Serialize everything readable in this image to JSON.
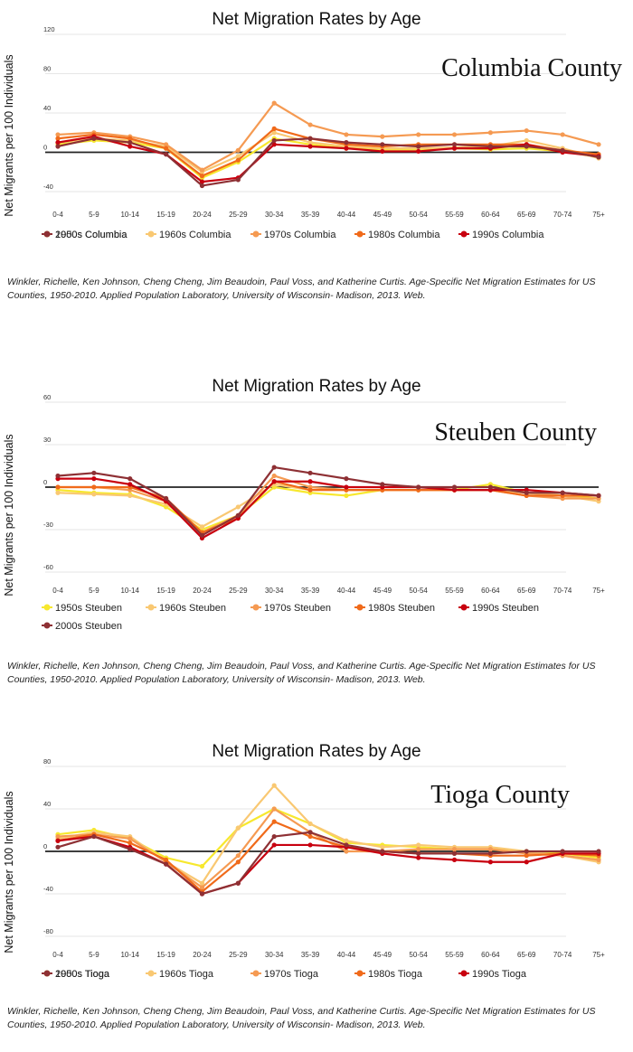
{
  "chart_data": [
    {
      "type": "line",
      "title": "Net Migration Rates by Age",
      "annotation": "Columbia County",
      "ylabel": "Net Migrants per 100 Individuals",
      "xlabel": "",
      "categories": [
        "0-4",
        "5-9",
        "10-14",
        "15-19",
        "20-24",
        "25-29",
        "30-34",
        "35-39",
        "40-44",
        "45-49",
        "50-54",
        "55-59",
        "60-64",
        "65-69",
        "70-74",
        "75+"
      ],
      "ylim": [
        -40,
        120
      ],
      "yticks": [
        "-40",
        "0",
        "40",
        "80",
        "120"
      ],
      "grid": true,
      "legend_position": "bottom",
      "series": [
        {
          "name": "1950s Columbia",
          "color": "#f7e82e",
          "values": [
            8,
            12,
            10,
            4,
            -26,
            -10,
            14,
            8,
            4,
            3,
            3,
            4,
            3,
            4,
            1,
            -5
          ]
        },
        {
          "name": "1960s Columbia",
          "color": "#f9c872",
          "values": [
            10,
            14,
            12,
            6,
            -20,
            -4,
            20,
            10,
            6,
            4,
            4,
            5,
            6,
            12,
            4,
            -6
          ]
        },
        {
          "name": "1970s Columbia",
          "color": "#f59a52",
          "values": [
            18,
            20,
            16,
            8,
            -18,
            2,
            50,
            28,
            18,
            16,
            18,
            18,
            20,
            22,
            18,
            8
          ]
        },
        {
          "name": "1980s Columbia",
          "color": "#f06a1a",
          "values": [
            14,
            18,
            14,
            4,
            -24,
            -8,
            24,
            14,
            8,
            6,
            8,
            8,
            8,
            8,
            2,
            -2
          ]
        },
        {
          "name": "1990s Columbia",
          "color": "#c8000f",
          "values": [
            10,
            16,
            6,
            -2,
            -30,
            -26,
            8,
            6,
            4,
            1,
            1,
            4,
            4,
            8,
            0,
            -4
          ]
        },
        {
          "name": "2000s Columbia",
          "color": "#8e3034",
          "values": [
            6,
            14,
            10,
            -2,
            -34,
            -28,
            12,
            14,
            10,
            8,
            6,
            8,
            6,
            6,
            2,
            -5
          ]
        }
      ]
    },
    {
      "type": "line",
      "title": "Net Migration Rates by Age",
      "annotation": "Steuben County",
      "ylabel": "Net Migrants per 100 Individuals",
      "xlabel": "",
      "categories": [
        "0-4",
        "5-9",
        "10-14",
        "15-19",
        "20-24",
        "25-29",
        "30-34",
        "35-39",
        "40-44",
        "45-49",
        "50-54",
        "55-59",
        "60-64",
        "65-69",
        "70-74",
        "75+"
      ],
      "ylim": [
        -60,
        60
      ],
      "yticks": [
        "-60",
        "-30",
        "0",
        "30",
        "60"
      ],
      "grid": true,
      "legend_position": "bottom",
      "series": [
        {
          "name": "1950s Steuben",
          "color": "#f7e82e",
          "values": [
            -2,
            -4,
            -5,
            -14,
            -30,
            -20,
            0,
            -4,
            -6,
            -2,
            -2,
            -2,
            2,
            -4,
            -6,
            -8
          ]
        },
        {
          "name": "1960s Steuben",
          "color": "#f9c872",
          "values": [
            -4,
            -5,
            -6,
            -12,
            -28,
            -14,
            2,
            -2,
            -2,
            -2,
            -2,
            -2,
            -2,
            -4,
            -6,
            -10
          ]
        },
        {
          "name": "1970s Steuben",
          "color": "#f59a52",
          "values": [
            0,
            0,
            -2,
            -10,
            -32,
            -20,
            8,
            0,
            -2,
            -2,
            -2,
            -2,
            -2,
            -6,
            -8,
            -8
          ]
        },
        {
          "name": "1980s Steuben",
          "color": "#f06a1a",
          "values": [
            0,
            0,
            0,
            -8,
            -32,
            -22,
            4,
            -2,
            -2,
            -2,
            -2,
            -2,
            -2,
            -6,
            -6,
            -6
          ]
        },
        {
          "name": "1990s Steuben",
          "color": "#c8000f",
          "values": [
            6,
            6,
            2,
            -10,
            -36,
            -22,
            4,
            4,
            0,
            0,
            0,
            -2,
            -2,
            -2,
            -4,
            -6
          ]
        },
        {
          "name": "2000s Steuben",
          "color": "#8e3034",
          "values": [
            8,
            10,
            6,
            -8,
            -34,
            -20,
            14,
            10,
            6,
            2,
            0,
            0,
            0,
            -4,
            -4,
            -6
          ]
        }
      ]
    },
    {
      "type": "line",
      "title": "Net Migration Rates by Age",
      "annotation": "Tioga County",
      "ylabel": "Net Migrants per 100 Individuals",
      "xlabel": "",
      "categories": [
        "0-4",
        "5-9",
        "10-14",
        "15-19",
        "20-24",
        "25-29",
        "30-34",
        "35-39",
        "40-44",
        "45-49",
        "50-54",
        "55-59",
        "60-64",
        "65-69",
        "70-74",
        "75+"
      ],
      "ylim": [
        -80,
        80
      ],
      "yticks": [
        "-80",
        "-40",
        "0",
        "40",
        "80"
      ],
      "grid": true,
      "legend_position": "bottom",
      "series": [
        {
          "name": "1950s Tioga",
          "color": "#f7e82e",
          "values": [
            16,
            20,
            12,
            -6,
            -14,
            22,
            40,
            26,
            8,
            6,
            4,
            2,
            2,
            0,
            -2,
            -6
          ]
        },
        {
          "name": "1960s Tioga",
          "color": "#f9c872",
          "values": [
            12,
            18,
            14,
            -10,
            -30,
            22,
            62,
            26,
            10,
            4,
            6,
            4,
            4,
            0,
            -4,
            -10
          ]
        },
        {
          "name": "1970s Tioga",
          "color": "#f59a52",
          "values": [
            14,
            16,
            12,
            -10,
            -34,
            -4,
            40,
            18,
            0,
            0,
            2,
            2,
            2,
            -2,
            -4,
            -8
          ]
        },
        {
          "name": "1980s Tioga",
          "color": "#f06a1a",
          "values": [
            10,
            16,
            8,
            -8,
            -38,
            -10,
            28,
            14,
            4,
            0,
            -2,
            -2,
            -4,
            -4,
            -2,
            -4
          ]
        },
        {
          "name": "1990s Tioga",
          "color": "#c8000f",
          "values": [
            10,
            14,
            4,
            -12,
            -40,
            -30,
            6,
            6,
            4,
            -2,
            -6,
            -8,
            -10,
            -10,
            -2,
            -2
          ]
        },
        {
          "name": "2000s Tioga",
          "color": "#8e3034",
          "values": [
            4,
            14,
            2,
            -12,
            -40,
            -30,
            14,
            18,
            6,
            0,
            -2,
            -2,
            -2,
            0,
            0,
            0
          ]
        }
      ]
    }
  ],
  "citation": "Winkler, Richelle, Ken Johnson, Cheng Cheng, Jim Beaudoin, Paul Voss, and Katherine Curtis. Age-Specific Net Migration Estimates for US Counties, 1950-2010. Applied Population Laboratory, University of Wisconsin- Madison, 2013. Web."
}
